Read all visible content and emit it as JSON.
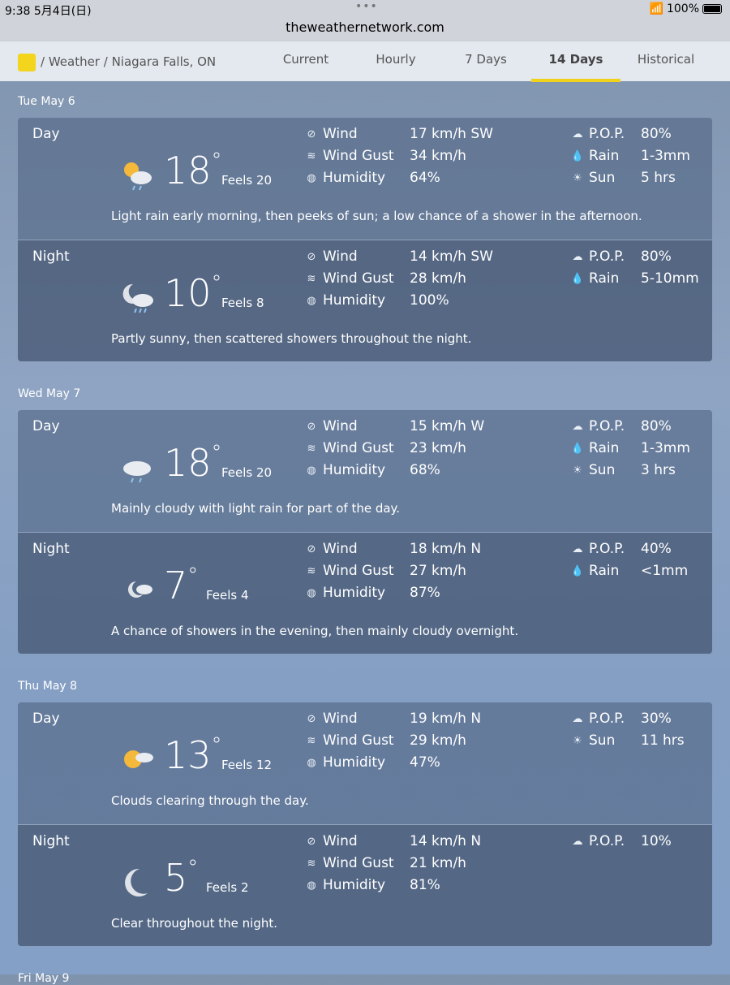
{
  "status": {
    "time": "9:38  5月4日(日)",
    "battery": "100%",
    "battery_level": 1.0,
    "url": "theweathernetwork.com"
  },
  "nav": {
    "breadcrumb": "/  Weather  /  Niagara Falls, ON",
    "tabs": [
      {
        "label": "Current"
      },
      {
        "label": "Hourly"
      },
      {
        "label": "7 Days"
      },
      {
        "label": "14 Days",
        "active": true
      },
      {
        "label": "Historical"
      }
    ]
  },
  "labels": {
    "wind": "Wind",
    "gust": "Wind Gust",
    "humidity": "Humidity",
    "pop": "P.O.P.",
    "rain": "Rain",
    "sun": "Sun"
  },
  "days": [
    {
      "date": "Tue May 6",
      "periods": [
        {
          "label": "Day",
          "icon": "sun-cloud-rain-icon",
          "temp": "18",
          "feels": "Feels 20",
          "wind": "17 km/h SW",
          "gust": "34 km/h",
          "humidity": "64%",
          "pop": "80%",
          "rain": "1-3mm",
          "sun": "5 hrs",
          "desc": "Light rain early morning, then peeks of sun; a low chance of a shower in the afternoon."
        },
        {
          "label": "Night",
          "icon": "moon-cloud-rain-icon",
          "temp": "10",
          "feels": "Feels 8",
          "wind": "14 km/h SW",
          "gust": "28 km/h",
          "humidity": "100%",
          "pop": "80%",
          "rain": "5-10mm",
          "desc": "Partly sunny, then scattered showers throughout the night."
        }
      ]
    },
    {
      "date": "Wed May 7",
      "periods": [
        {
          "label": "Day",
          "icon": "cloud-rain-icon",
          "temp": "18",
          "feels": "Feels 20",
          "wind": "15 km/h W",
          "gust": "23 km/h",
          "humidity": "68%",
          "pop": "80%",
          "rain": "1-3mm",
          "sun": "3 hrs",
          "desc": "Mainly cloudy with light rain for part of the day."
        },
        {
          "label": "Night",
          "icon": "moon-cloud-icon",
          "temp": "7",
          "feels": "Feels 4",
          "wind": "18 km/h N",
          "gust": "27 km/h",
          "humidity": "87%",
          "pop": "40%",
          "rain": "<1mm",
          "desc": "A chance of showers in the evening, then mainly cloudy overnight."
        }
      ]
    },
    {
      "date": "Thu May 8",
      "periods": [
        {
          "label": "Day",
          "icon": "sun-cloud-icon",
          "temp": "13",
          "feels": "Feels 12",
          "wind": "19 km/h N",
          "gust": "29 km/h",
          "humidity": "47%",
          "pop": "30%",
          "sun": "11 hrs",
          "desc": "Clouds clearing through the day."
        },
        {
          "label": "Night",
          "icon": "moon-icon",
          "temp": "5",
          "feels": "Feels 2",
          "wind": "14 km/h N",
          "gust": "21 km/h",
          "humidity": "81%",
          "pop": "10%",
          "desc": "Clear throughout the night."
        }
      ]
    }
  ],
  "next_day": "Fri May 9"
}
